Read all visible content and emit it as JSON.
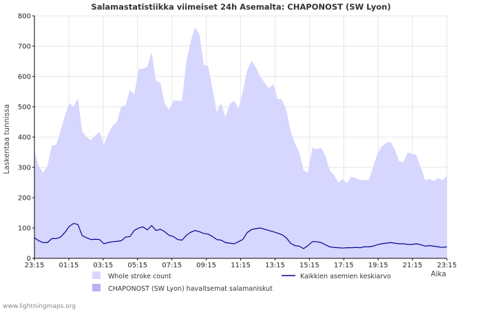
{
  "chart_data": {
    "type": "area",
    "title": "Salamastatistiikka viimeiset 24h Asemalta: CHAPONOST (SW Lyon)",
    "ylabel": "Laskentaa tunnissa",
    "xlabel": "Aika",
    "ylim": [
      0,
      800
    ],
    "yticks": [
      "0",
      "100",
      "200",
      "300",
      "400",
      "500",
      "600",
      "700",
      "800"
    ],
    "xticks": [
      "23:15",
      "01:15",
      "03:15",
      "05:15",
      "07:15",
      "09:15",
      "11:15",
      "13:15",
      "15:15",
      "17:15",
      "19:15",
      "21:15",
      "23:15"
    ],
    "series": [
      {
        "name": "Whole stroke count",
        "type": "area",
        "color": "#d6d6ff",
        "values": [
          352,
          305,
          282,
          305,
          372,
          375,
          420,
          470,
          512,
          500,
          528,
          418,
          400,
          390,
          405,
          418,
          375,
          410,
          438,
          450,
          500,
          505,
          555,
          540,
          625,
          625,
          632,
          680,
          585,
          580,
          510,
          490,
          520,
          520,
          520,
          650,
          715,
          762,
          740,
          638,
          635,
          560,
          482,
          512,
          465,
          510,
          520,
          495,
          550,
          620,
          652,
          630,
          600,
          580,
          560,
          575,
          525,
          525,
          490,
          420,
          380,
          350,
          290,
          282,
          365,
          360,
          365,
          340,
          290,
          275,
          250,
          262,
          248,
          270,
          265,
          258,
          258,
          258,
          300,
          345,
          370,
          380,
          385,
          360,
          320,
          318,
          350,
          345,
          340,
          300,
          258,
          262,
          255,
          265,
          258,
          272
        ]
      },
      {
        "name": "CHAPONOST (SW Lyon) havaitsemat salamaniskut",
        "type": "area",
        "color": "#b3b3f5",
        "values": []
      },
      {
        "name": "Kaikkien asemien keskiarvo",
        "type": "line",
        "color": "#00008b",
        "values": [
          68,
          58,
          52,
          52,
          65,
          65,
          70,
          85,
          105,
          115,
          112,
          75,
          68,
          62,
          63,
          62,
          48,
          52,
          55,
          56,
          58,
          70,
          72,
          92,
          100,
          104,
          94,
          108,
          92,
          96,
          88,
          76,
          72,
          62,
          60,
          76,
          86,
          92,
          88,
          82,
          80,
          72,
          62,
          60,
          52,
          50,
          48,
          55,
          62,
          85,
          95,
          98,
          100,
          96,
          92,
          88,
          83,
          78,
          68,
          50,
          42,
          40,
          32,
          42,
          55,
          55,
          52,
          45,
          38,
          36,
          35,
          34,
          35,
          35,
          36,
          35,
          38,
          38,
          40,
          45,
          48,
          50,
          52,
          50,
          48,
          48,
          46,
          46,
          48,
          45,
          40,
          42,
          40,
          38,
          36,
          38
        ]
      }
    ]
  },
  "footer": "www.lightningmaps.org"
}
